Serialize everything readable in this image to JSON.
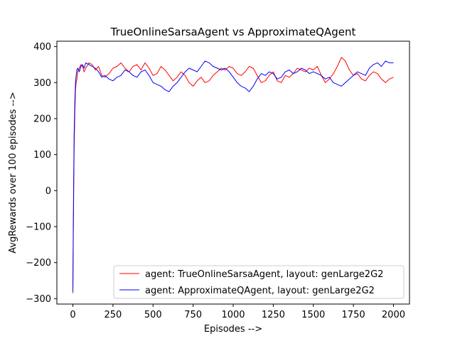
{
  "chart_data": {
    "type": "line",
    "title": "TrueOnlineSarsaAgent vs ApproximateQAgent",
    "xlabel": "Episodes -->",
    "ylabel": "AvgRewards over 100 episodes -->",
    "xlim": [
      -100,
      2100
    ],
    "ylim": [
      -315,
      415
    ],
    "xticks": [
      0,
      250,
      500,
      750,
      1000,
      1250,
      1500,
      1750,
      2000
    ],
    "yticks": [
      -300,
      -200,
      -100,
      0,
      100,
      200,
      300,
      400
    ],
    "grid": false,
    "legend_position": "lower-right",
    "series": [
      {
        "name": "agent: TrueOnlineSarsaAgent, layout: genLarge2G2",
        "color": "#ff0000",
        "x": [
          0,
          2,
          5,
          8,
          12,
          16,
          20,
          25,
          30,
          40,
          50,
          60,
          70,
          80,
          100,
          120,
          140,
          160,
          180,
          200,
          225,
          250,
          275,
          300,
          325,
          350,
          375,
          400,
          425,
          450,
          475,
          500,
          525,
          550,
          575,
          600,
          625,
          650,
          675,
          700,
          725,
          750,
          775,
          800,
          825,
          850,
          875,
          900,
          925,
          950,
          975,
          1000,
          1025,
          1050,
          1075,
          1100,
          1125,
          1150,
          1175,
          1200,
          1225,
          1250,
          1275,
          1300,
          1325,
          1350,
          1375,
          1400,
          1425,
          1450,
          1475,
          1500,
          1525,
          1550,
          1575,
          1600,
          1625,
          1650,
          1675,
          1700,
          1725,
          1750,
          1775,
          1800,
          1825,
          1850,
          1875,
          1900,
          1925,
          1950,
          1975,
          2000
        ],
        "y": [
          -285,
          -150,
          0,
          120,
          220,
          280,
          300,
          310,
          330,
          340,
          350,
          345,
          330,
          340,
          355,
          350,
          335,
          345,
          320,
          315,
          325,
          340,
          345,
          355,
          340,
          330,
          345,
          350,
          335,
          355,
          340,
          320,
          325,
          345,
          335,
          320,
          305,
          315,
          330,
          320,
          300,
          290,
          305,
          315,
          300,
          305,
          320,
          330,
          340,
          335,
          345,
          340,
          325,
          320,
          330,
          345,
          340,
          320,
          300,
          305,
          320,
          330,
          305,
          300,
          320,
          315,
          325,
          340,
          335,
          330,
          340,
          335,
          345,
          320,
          300,
          310,
          325,
          345,
          370,
          360,
          335,
          320,
          325,
          310,
          305,
          320,
          330,
          325,
          310,
          300,
          310,
          315
        ]
      },
      {
        "name": "agent: ApproximateQAgent, layout: genLarge2G2",
        "color": "#0000ff",
        "x": [
          0,
          2,
          5,
          8,
          12,
          16,
          20,
          25,
          30,
          40,
          50,
          60,
          70,
          80,
          100,
          120,
          140,
          160,
          180,
          200,
          225,
          250,
          275,
          300,
          325,
          350,
          375,
          400,
          425,
          450,
          475,
          500,
          525,
          550,
          575,
          600,
          625,
          650,
          675,
          700,
          725,
          750,
          775,
          800,
          825,
          850,
          875,
          900,
          925,
          950,
          975,
          1000,
          1025,
          1050,
          1075,
          1100,
          1125,
          1150,
          1175,
          1200,
          1225,
          1250,
          1275,
          1300,
          1325,
          1350,
          1375,
          1400,
          1425,
          1450,
          1475,
          1500,
          1525,
          1550,
          1575,
          1600,
          1625,
          1650,
          1675,
          1700,
          1725,
          1750,
          1775,
          1800,
          1825,
          1850,
          1875,
          1900,
          1925,
          1950,
          1975,
          2000
        ],
        "y": [
          -280,
          -120,
          40,
          160,
          250,
          300,
          320,
          335,
          340,
          330,
          345,
          350,
          340,
          355,
          350,
          345,
          340,
          330,
          315,
          320,
          310,
          305,
          315,
          320,
          335,
          330,
          320,
          315,
          330,
          335,
          320,
          300,
          295,
          290,
          280,
          275,
          290,
          300,
          315,
          330,
          340,
          335,
          330,
          345,
          360,
          355,
          345,
          340,
          335,
          340,
          330,
          315,
          300,
          290,
          285,
          275,
          290,
          310,
          325,
          320,
          330,
          325,
          310,
          315,
          330,
          335,
          325,
          330,
          340,
          335,
          325,
          330,
          325,
          320,
          310,
          315,
          300,
          295,
          290,
          300,
          310,
          320,
          330,
          325,
          320,
          340,
          350,
          355,
          345,
          360,
          355,
          355
        ]
      }
    ]
  }
}
